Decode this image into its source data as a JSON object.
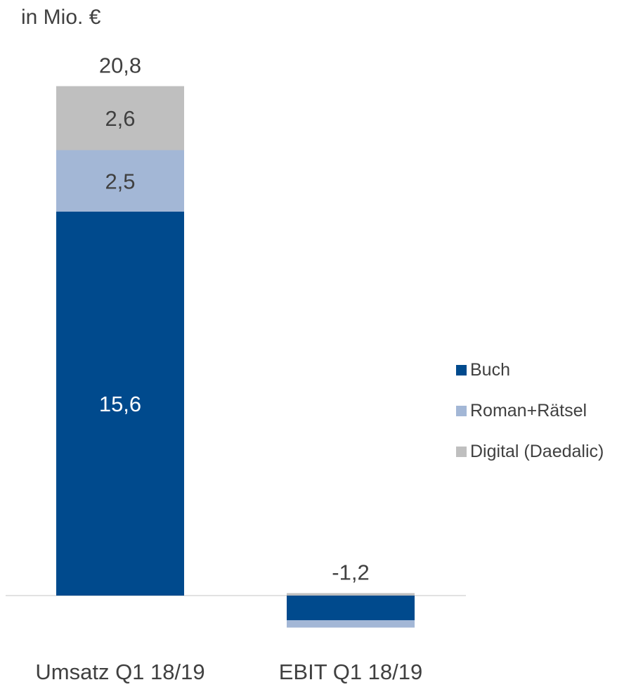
{
  "unit_label": "in Mio. €",
  "chart_data": {
    "type": "bar",
    "stacked": true,
    "categories": [
      "Umsatz Q1 18/19",
      "EBIT Q1 18/19"
    ],
    "series": [
      {
        "name": "Buch",
        "color": "#004a8d",
        "values": [
          15.6,
          -1.0
        ]
      },
      {
        "name": "Roman+Rätsel",
        "color": "#a3b7d6",
        "values": [
          2.5,
          -0.3
        ]
      },
      {
        "name": "Digital (Daedalic)",
        "color": "#bfbfbf",
        "values": [
          2.6,
          0.1
        ]
      }
    ],
    "segment_labels": [
      [
        "15,6",
        ""
      ],
      [
        "2,5",
        ""
      ],
      [
        "2,6",
        ""
      ]
    ],
    "total_labels": [
      "20,8",
      "-1,2"
    ],
    "axis_line": true,
    "grid": false,
    "legend_position": "right"
  }
}
